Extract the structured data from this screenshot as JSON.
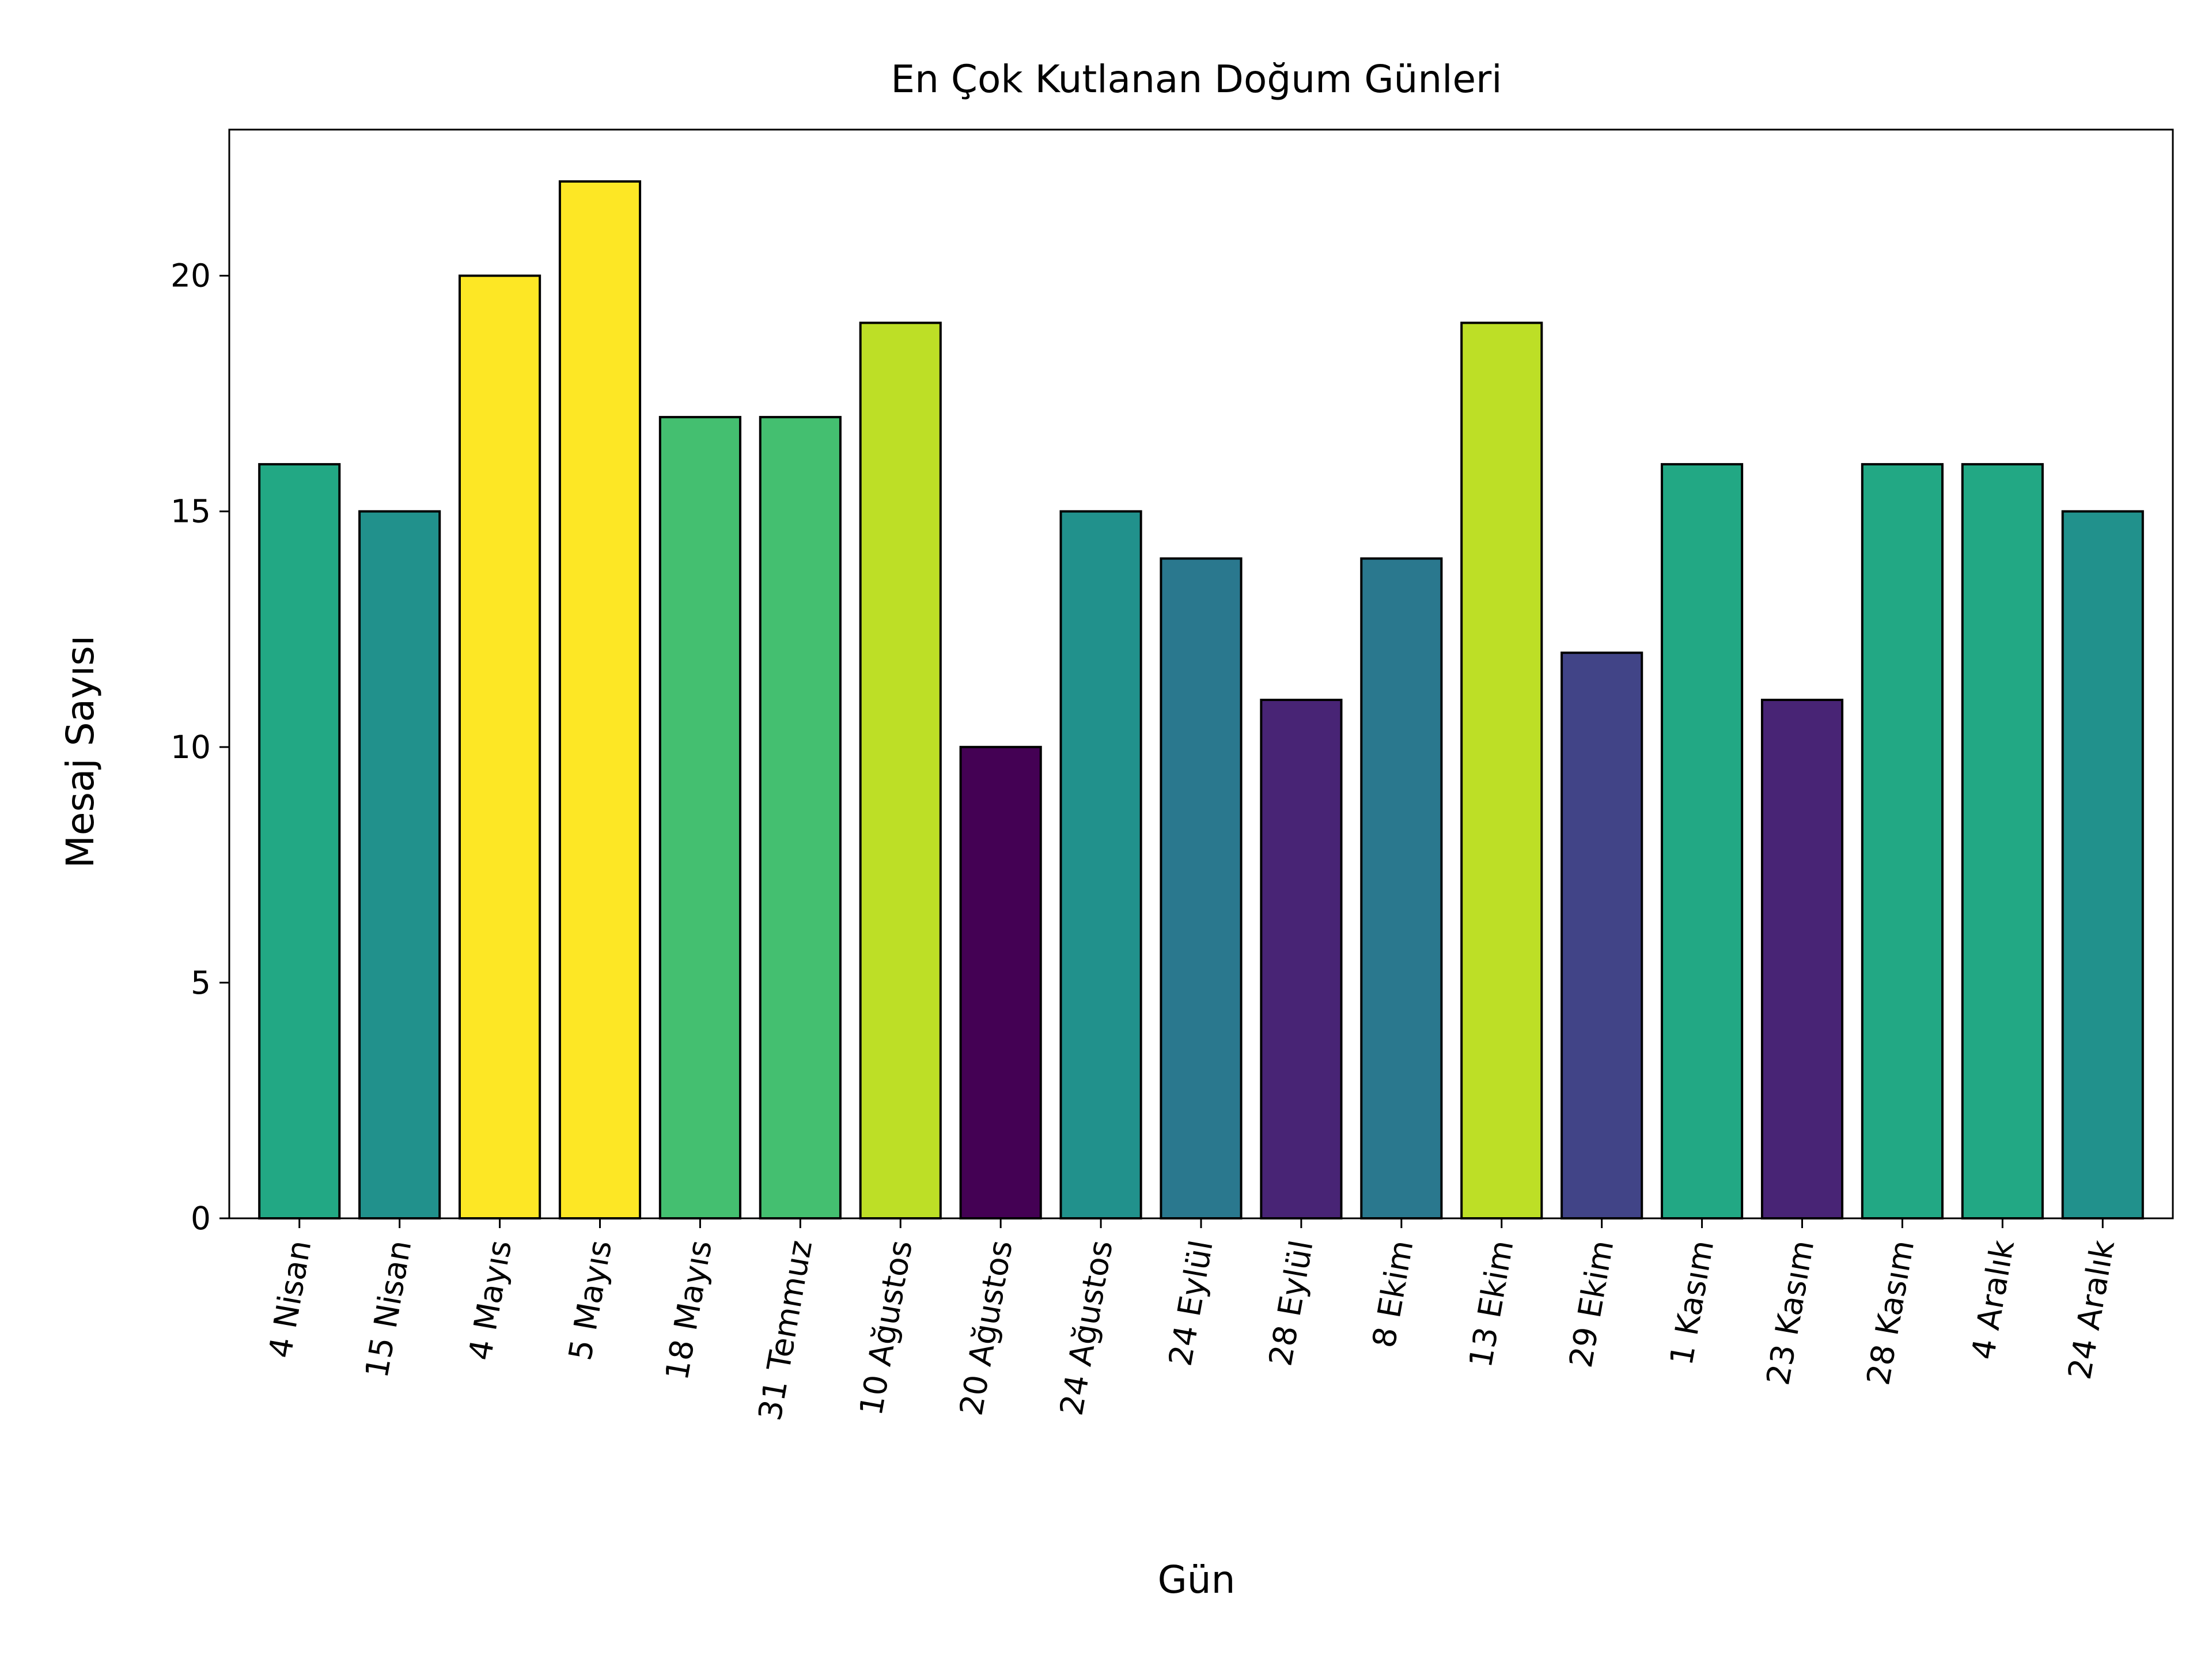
{
  "chart_data": {
    "type": "bar",
    "title": "En Çok Kutlanan Doğum Günleri",
    "xlabel": "Gün",
    "ylabel": "Mesaj Sayısı",
    "ylim": [
      0,
      23.1
    ],
    "yticks": [
      0,
      5,
      10,
      15,
      20
    ],
    "grid": false,
    "legend": "none",
    "categories": [
      "4 Nisan",
      "15 Nisan",
      "4 Mayıs",
      "5 Mayıs",
      "18 Mayıs",
      "31 Temmuz",
      "10 Ağustos",
      "20 Ağustos",
      "24 Ağustos",
      "24 Eylül",
      "28 Eylül",
      "8 Ekim",
      "13 Ekim",
      "29 Ekim",
      "1 Kasım",
      "23 Kasım",
      "28 Kasım",
      "4 Aralık",
      "24 Aralık"
    ],
    "values": [
      16,
      15,
      20,
      22,
      17,
      17,
      19,
      10,
      15,
      14,
      11,
      14,
      19,
      12,
      16,
      11,
      16,
      16,
      15
    ],
    "colors": [
      "#22a884",
      "#21918c",
      "#fde725",
      "#fde725",
      "#44bf70",
      "#44bf70",
      "#bddf26",
      "#440154",
      "#21918c",
      "#2a788e",
      "#482475",
      "#2a788e",
      "#bddf26",
      "#414487",
      "#22a884",
      "#482475",
      "#22a884",
      "#22a884",
      "#21918c"
    ],
    "edge_color": "#000000"
  }
}
